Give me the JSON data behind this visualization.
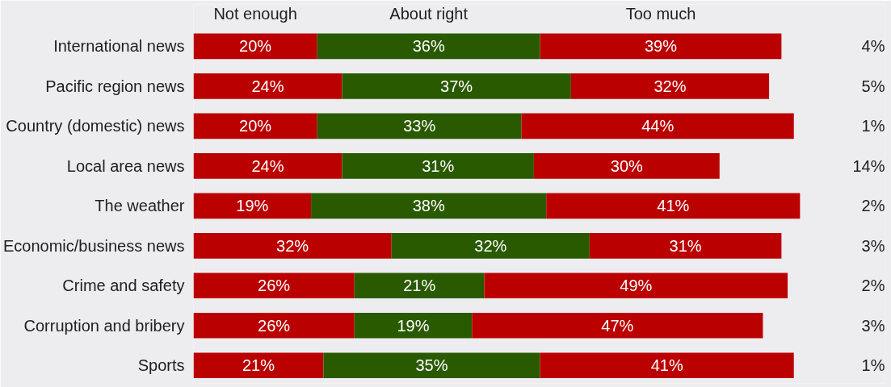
{
  "chart_data": {
    "type": "bar",
    "orientation": "horizontal",
    "stacked": true,
    "legend": "top",
    "grid": false,
    "categories": [
      "International news",
      "Pacific region news",
      "Country (domestic) news",
      "Local area news",
      "The weather",
      "Economic/business news",
      "Crime and safety",
      "Corruption and bribery",
      "Sports"
    ],
    "series": [
      {
        "name": "Not enough",
        "color": "#bb0000",
        "values": [
          20,
          24,
          20,
          24,
          19,
          32,
          26,
          26,
          21
        ],
        "value_labels": [
          "20%",
          "24%",
          "20%",
          "24%",
          "19%",
          "32%",
          "26%",
          "26%",
          "21%"
        ]
      },
      {
        "name": "About right",
        "color": "#2a5a00",
        "values": [
          36,
          37,
          33,
          31,
          38,
          32,
          21,
          19,
          35
        ],
        "value_labels": [
          "36%",
          "37%",
          "33%",
          "31%",
          "38%",
          "32%",
          "21%",
          "19%",
          "35%"
        ]
      },
      {
        "name": "Too much",
        "color": "#bb0000",
        "values": [
          39,
          32,
          44,
          30,
          41,
          31,
          49,
          47,
          41
        ],
        "value_labels": [
          "39%",
          "32%",
          "44%",
          "30%",
          "41%",
          "31%",
          "49%",
          "47%",
          "41%"
        ]
      }
    ],
    "annotations": [
      "4%",
      "5%",
      "1%",
      "14%",
      "2%",
      "3%",
      "2%",
      "3%",
      "1%"
    ]
  }
}
